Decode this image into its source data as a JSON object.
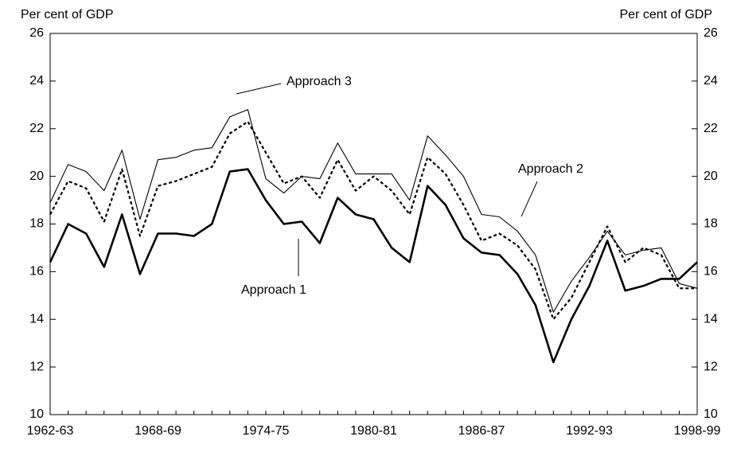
{
  "chart_data": {
    "type": "line",
    "ylabel": "Per cent of GDP",
    "y2label": "Per cent of GDP",
    "categories": [
      "1962-63",
      null,
      null,
      null,
      null,
      null,
      "1968-69",
      null,
      null,
      null,
      null,
      null,
      "1974-75",
      null,
      null,
      null,
      null,
      null,
      "1980-81",
      null,
      null,
      null,
      null,
      null,
      "1986-87",
      null,
      null,
      null,
      null,
      null,
      "1992-93",
      null,
      null,
      null,
      null,
      null,
      "1998-99"
    ],
    "series": [
      {
        "name": "Approach 1",
        "color": "#000000",
        "style": "solid",
        "width": 2.6,
        "values": [
          16.4,
          18.0,
          17.6,
          16.2,
          18.4,
          15.9,
          17.6,
          17.6,
          17.5,
          18.0,
          20.2,
          20.3,
          19.0,
          18.0,
          18.1,
          17.2,
          19.1,
          18.4,
          18.2,
          17.0,
          16.4,
          19.6,
          18.8,
          17.4,
          16.8,
          16.7,
          15.9,
          14.6,
          12.2,
          14.0,
          15.4,
          17.3,
          15.2,
          15.4,
          15.7,
          15.7,
          16.4
        ]
      },
      {
        "name": "Approach 2",
        "color": "#000000",
        "style": "dotted",
        "width": 2.2,
        "values": [
          18.4,
          19.8,
          19.5,
          18.1,
          20.3,
          17.5,
          19.6,
          19.8,
          20.1,
          20.4,
          21.8,
          22.3,
          21.0,
          19.7,
          20.0,
          19.1,
          20.7,
          19.4,
          20.0,
          19.4,
          18.4,
          20.8,
          20.1,
          18.8,
          17.3,
          17.6,
          17.1,
          16.1,
          14.0,
          14.9,
          16.4,
          17.9,
          16.4,
          17.0,
          16.7,
          15.3,
          15.3
        ]
      },
      {
        "name": "Approach 3",
        "color": "#000000",
        "style": "solid",
        "width": 1.1,
        "values": [
          18.9,
          20.5,
          20.2,
          19.4,
          21.1,
          18.2,
          20.7,
          20.8,
          21.1,
          21.2,
          22.5,
          22.8,
          19.9,
          19.3,
          20.0,
          19.9,
          21.4,
          20.1,
          20.1,
          20.1,
          19.0,
          21.7,
          20.9,
          20.0,
          18.4,
          18.3,
          17.7,
          16.7,
          14.3,
          15.6,
          16.6,
          17.7,
          16.7,
          16.9,
          17.0,
          15.5,
          15.3
        ]
      }
    ],
    "annotations": [
      "Approach 1",
      "Approach 2",
      "Approach 3"
    ],
    "ylim": [
      10,
      26
    ],
    "yticks": [
      10,
      12,
      14,
      16,
      18,
      20,
      22,
      24,
      26
    ],
    "y2lim": [
      10,
      26
    ],
    "y2ticks": [
      10,
      12,
      14,
      16,
      18,
      20,
      22,
      24,
      26
    ]
  }
}
